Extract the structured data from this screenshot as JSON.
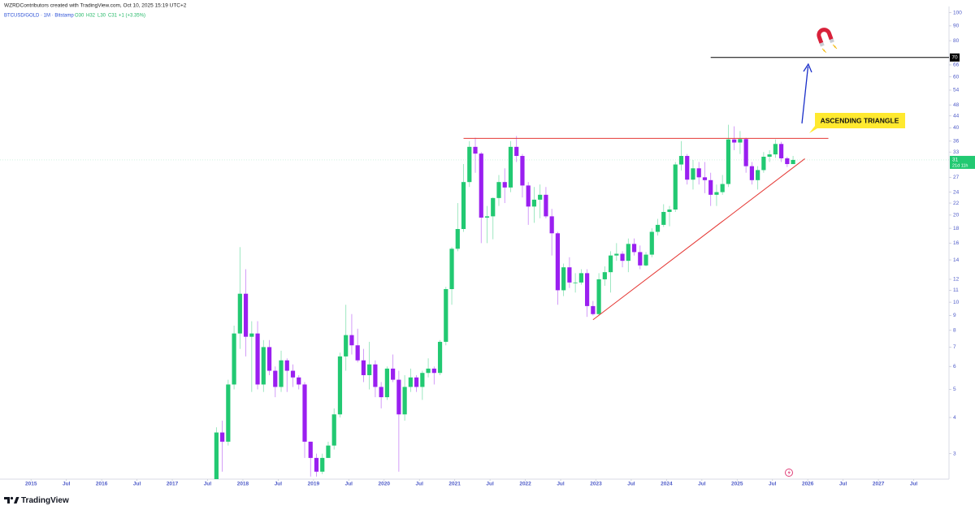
{
  "header": {
    "credit": "WZRDContributors created with TradingView.com, Oct 10, 2025 15:19 UTC+2"
  },
  "footer": {
    "brand": "TradingView"
  },
  "chart_data": {
    "type": "candlestick",
    "legend": {
      "symbol": "BTCUSD/GOLD · 1M · Bitstamp",
      "o": "O30",
      "h": "H32",
      "l": "L30",
      "c": "C31",
      "change": "+1 (+3.35%)"
    },
    "countdown": "21d 11h",
    "up_color": "#22c972",
    "down_color": "#9a1ff0",
    "log_scale": true,
    "grid": false,
    "x": [
      "2017-08",
      "2017-09",
      "2017-10",
      "2017-11",
      "2017-12",
      "2018-01",
      "2018-02",
      "2018-03",
      "2018-04",
      "2018-05",
      "2018-06",
      "2018-07",
      "2018-08",
      "2018-09",
      "2018-10",
      "2018-11",
      "2018-12",
      "2019-01",
      "2019-02",
      "2019-03",
      "2019-04",
      "2019-05",
      "2019-06",
      "2019-07",
      "2019-08",
      "2019-09",
      "2019-10",
      "2019-11",
      "2019-12",
      "2020-01",
      "2020-02",
      "2020-03",
      "2020-04",
      "2020-05",
      "2020-06",
      "2020-07",
      "2020-08",
      "2020-09",
      "2020-10",
      "2020-11",
      "2020-12",
      "2021-01",
      "2021-02",
      "2021-03",
      "2021-04",
      "2021-05",
      "2021-06",
      "2021-07",
      "2021-08",
      "2021-09",
      "2021-10",
      "2021-11",
      "2021-12",
      "2022-01",
      "2022-02",
      "2022-03",
      "2022-04",
      "2022-05",
      "2022-06",
      "2022-07",
      "2022-08",
      "2022-09",
      "2022-10",
      "2022-11",
      "2022-12",
      "2023-01",
      "2023-02",
      "2023-03",
      "2023-04",
      "2023-05",
      "2023-06",
      "2023-07",
      "2023-08",
      "2023-09",
      "2023-10",
      "2023-11",
      "2023-12",
      "2024-01",
      "2024-02",
      "2024-03",
      "2024-04",
      "2024-05",
      "2024-06",
      "2024-07",
      "2024-08",
      "2024-09",
      "2024-10",
      "2024-11",
      "2024-12",
      "2025-01",
      "2025-02",
      "2025-03",
      "2025-04",
      "2025-05",
      "2025-06",
      "2025-07",
      "2025-08",
      "2025-09",
      "2025-10"
    ],
    "open": [
      2.15,
      3.55,
      3.3,
      5.2,
      7.8,
      10.7,
      7.6,
      7.8,
      5.2,
      7.0,
      5.8,
      5.1,
      6.3,
      5.8,
      5.5,
      5.2,
      3.3,
      2.9,
      2.6,
      2.9,
      3.2,
      4.1,
      6.5,
      7.7,
      7.1,
      6.3,
      5.6,
      6.1,
      5.1,
      4.7,
      5.9,
      5.4,
      4.1,
      5.1,
      5.5,
      5.1,
      5.7,
      5.9,
      5.7,
      7.3,
      11.1,
      15.3,
      17.9,
      26,
      34.4,
      32.6,
      19.6,
      19.8,
      22.9,
      26,
      24.9,
      34.4,
      32,
      25.3,
      21.4,
      22.6,
      23.5,
      19.8,
      17.3,
      11,
      13.2,
      11.7,
      11.7,
      12.6,
      9.7,
      9.1,
      12,
      12.7,
      14.5,
      14.7,
      13.9,
      15.9,
      14.9,
      13.4,
      14.6,
      17.5,
      18.5,
      20.5,
      20.9,
      29.9,
      32,
      26.5,
      29,
      27,
      26.4,
      23.5,
      24,
      25.6,
      36.5,
      35.6,
      36.6,
      29.5,
      26.4,
      28.6,
      31.8,
      32.4,
      35.2,
      31.4,
      30
    ],
    "high": [
      3.7,
      3.9,
      5.4,
      8.3,
      15.5,
      13.0,
      8.6,
      8.6,
      7.4,
      7.4,
      6.0,
      6.8,
      6.4,
      6.1,
      5.6,
      5.3,
      3.3,
      3.0,
      3.0,
      3.3,
      4.3,
      6.7,
      9.8,
      9.1,
      8.1,
      6.9,
      7.3,
      6.3,
      5.3,
      6.0,
      6.6,
      5.8,
      5.6,
      5.9,
      5.6,
      5.8,
      6.4,
      6.0,
      7.4,
      11.3,
      15.5,
      22,
      30,
      36,
      37,
      33,
      21.5,
      23,
      27.5,
      29,
      36,
      37.5,
      32.5,
      26,
      25,
      25.5,
      25,
      21,
      17.5,
      13.6,
      14.3,
      12.6,
      13,
      13,
      10.1,
      12.6,
      13.3,
      15,
      16,
      15,
      16.6,
      16.6,
      15.7,
      14.9,
      18,
      19.4,
      21.8,
      21.5,
      30.5,
      36,
      32.5,
      31,
      30.5,
      30.5,
      28,
      25.5,
      27.5,
      41,
      40.5,
      39,
      37,
      30.5,
      29.5,
      33,
      33.5,
      36.5,
      35.8,
      31.8,
      32
    ],
    "low": [
      2.1,
      2.6,
      3.2,
      5.0,
      6.9,
      6.5,
      4.9,
      5.0,
      4.9,
      5.6,
      4.7,
      4.9,
      4.9,
      5.1,
      5.0,
      2.9,
      2.5,
      2.5,
      2.55,
      2.9,
      3.1,
      4.0,
      5.8,
      6.6,
      6.2,
      5.3,
      5.0,
      4.7,
      4.3,
      4.6,
      5.3,
      2.6,
      3.9,
      4.9,
      4.9,
      4.6,
      5.5,
      5.2,
      5.6,
      7.1,
      9.8,
      15.0,
      17.5,
      25,
      28,
      16,
      16,
      16.5,
      21.5,
      22,
      24,
      30.5,
      23,
      18.5,
      18.8,
      19.5,
      19.5,
      14.5,
      9.8,
      10.5,
      11.2,
      10.8,
      11.5,
      8.9,
      9.0,
      9.0,
      11.4,
      10.8,
      13.9,
      13.2,
      12.7,
      14.5,
      13,
      13.3,
      14.3,
      17,
      18.2,
      18.3,
      20.5,
      28.5,
      25.5,
      24.5,
      25.5,
      23.8,
      21.5,
      21.5,
      23.5,
      25,
      33.5,
      32.5,
      28,
      25.5,
      24.5,
      28,
      30.5,
      31.5,
      30.5,
      29.3,
      30
    ],
    "close": [
      3.55,
      3.3,
      5.2,
      7.8,
      10.7,
      7.6,
      7.8,
      5.2,
      7.0,
      5.8,
      5.1,
      6.3,
      5.8,
      5.5,
      5.2,
      3.3,
      2.9,
      2.6,
      2.9,
      3.2,
      4.1,
      6.5,
      7.7,
      7.1,
      6.3,
      5.6,
      6.1,
      5.1,
      4.7,
      5.9,
      5.4,
      4.1,
      5.1,
      5.5,
      5.1,
      5.7,
      5.9,
      5.7,
      7.3,
      11.1,
      15.3,
      17.9,
      26,
      34.4,
      32.6,
      19.6,
      19.8,
      22.9,
      26,
      24.9,
      34.4,
      32,
      25.3,
      21.4,
      22.6,
      23.5,
      19.8,
      17.3,
      11,
      13.2,
      11.7,
      11.7,
      12.6,
      9.7,
      9.1,
      12,
      12.7,
      14.5,
      14.7,
      13.9,
      15.9,
      14.9,
      13.4,
      14.6,
      17.5,
      18.5,
      20.5,
      20.9,
      29.9,
      32,
      26.5,
      29,
      27,
      26.4,
      23.5,
      24,
      25.6,
      36.5,
      35.6,
      36.6,
      29.5,
      26.4,
      28.6,
      31.8,
      32.4,
      35.2,
      31.4,
      30,
      31
    ],
    "xlim": [
      2014.56,
      2028.0
    ],
    "xticks": [
      2015,
      {
        "value": 2015.5,
        "label": "Jul"
      },
      2016,
      {
        "value": 2016.5,
        "label": "Jul"
      },
      2017,
      {
        "value": 2017.5,
        "label": "Jul"
      },
      2018,
      {
        "value": 2018.5,
        "label": "Jul"
      },
      2019,
      {
        "value": 2019.5,
        "label": "Jul"
      },
      2020,
      {
        "value": 2020.5,
        "label": "Jul"
      },
      2021,
      {
        "value": 2021.5,
        "label": "Jul"
      },
      2022,
      {
        "value": 2022.5,
        "label": "Jul"
      },
      2023,
      {
        "value": 2023.5,
        "label": "Jul"
      },
      2024,
      {
        "value": 2024.5,
        "label": "Jul"
      },
      2025,
      {
        "value": 2025.5,
        "label": "Jul"
      },
      2026,
      {
        "value": 2026.5,
        "label": "Jul"
      },
      2027,
      {
        "value": 2027.5,
        "label": "Jul"
      }
    ],
    "ylim": [
      2.45,
      105
    ],
    "yticks": [
      3,
      4,
      5,
      6,
      7,
      8,
      9,
      10,
      11,
      12,
      14,
      16,
      18,
      20,
      22,
      24,
      27,
      33,
      36,
      40,
      44,
      48,
      54,
      60,
      66,
      80,
      90,
      100
    ],
    "hlines": [
      {
        "value": 70,
        "x": "2024-08",
        "color": "#000000"
      }
    ],
    "trendlines": [
      {
        "x": [
          "2021-02",
          "2026-04"
        ],
        "y": [
          36.8,
          36.8
        ],
        "color": "#e53935"
      },
      {
        "x": [
          "2022-12",
          "2025-12"
        ],
        "y": [
          8.7,
          31.3
        ],
        "color": "#e53935"
      }
    ],
    "annotations": [
      {
        "text": "ASCENDING TRIANGLE"
      }
    ]
  }
}
